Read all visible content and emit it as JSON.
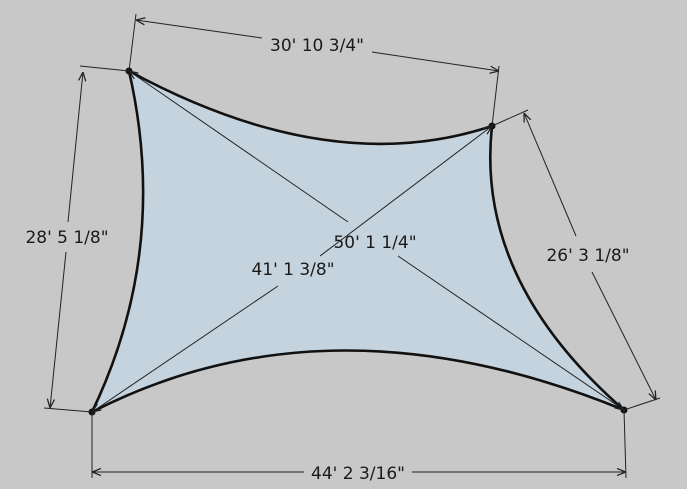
{
  "colors": {
    "background": "#c8c8c8",
    "sail_fill": "#c5d3de",
    "sail_edge": "#111111",
    "dimension_line": "#222222"
  },
  "dimensions": {
    "top": "30' 10 3/4\"",
    "left": "28' 5 1/8\"",
    "right": "26' 3 1/8\"",
    "bottom": "44' 2 3/16\"",
    "diagonal_long": "50' 1 1/4\"",
    "diagonal_short": "41' 1 3/8\""
  }
}
